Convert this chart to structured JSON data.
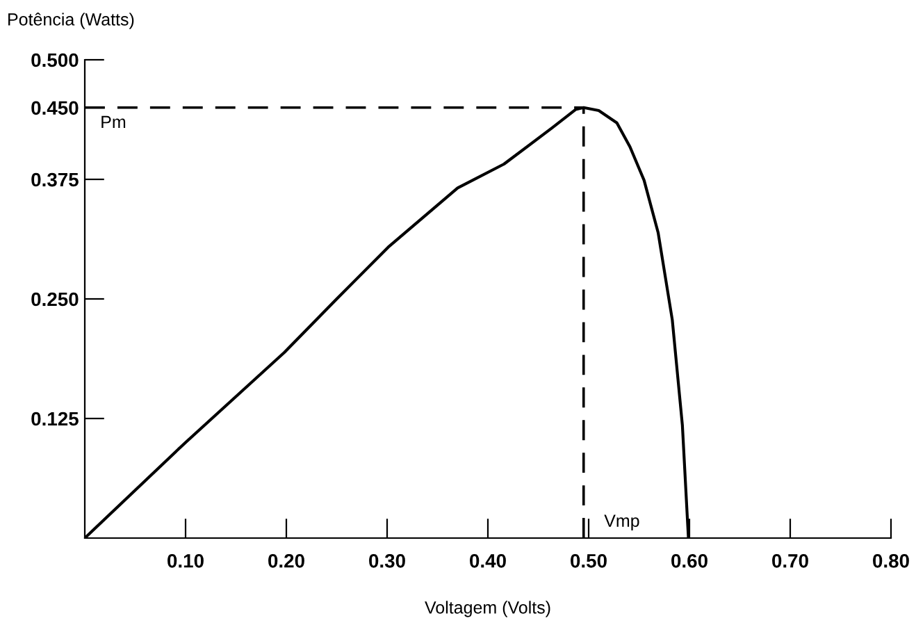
{
  "chart_data": {
    "type": "line",
    "ylabel": "Potência (Watts)",
    "xlabel": "Voltagem (Volts)",
    "series": [
      {
        "color": "#000000",
        "x": [
          0,
          0.1,
          0.198,
          0.25,
          0.301,
          0.37,
          0.416,
          0.464,
          0.487,
          0.495,
          0.51,
          0.528,
          0.541,
          0.555,
          0.569,
          0.583,
          0.593,
          0.599
        ],
        "values": [
          0,
          0.1,
          0.194,
          0.25,
          0.304,
          0.366,
          0.391,
          0.429,
          0.448,
          0.45,
          0.447,
          0.434,
          0.409,
          0.374,
          0.319,
          0.228,
          0.118,
          0
        ]
      }
    ],
    "xlim": [
      0,
      0.8
    ],
    "ylim": [
      0,
      0.5
    ],
    "xticks": [
      {
        "value": 0.1,
        "label": "0.10"
      },
      {
        "value": 0.2,
        "label": "0.20"
      },
      {
        "value": 0.3,
        "label": "0.30"
      },
      {
        "value": 0.4,
        "label": "0.40"
      },
      {
        "value": 0.5,
        "label": "0.50"
      },
      {
        "value": 0.6,
        "label": "0.60"
      },
      {
        "value": 0.7,
        "label": "0.70"
      },
      {
        "value": 0.8,
        "label": "0.80"
      }
    ],
    "yticks": [
      {
        "value": 0.125,
        "label": "0.125"
      },
      {
        "value": 0.25,
        "label": "0.250"
      },
      {
        "value": 0.375,
        "label": "0.375"
      },
      {
        "value": 0.45,
        "label": "0.450"
      },
      {
        "value": 0.5,
        "label": "0.500"
      }
    ],
    "ref_lines": [
      {
        "axis": "y",
        "value": 0.45,
        "line_style": "dashed"
      },
      {
        "axis": "x",
        "value": 0.495,
        "line_style": "dashed"
      }
    ],
    "annotations": [
      {
        "text": "Pm",
        "x": 0,
        "y": 0.45
      },
      {
        "text": "Vmp",
        "x": 0.5,
        "y": 0
      }
    ],
    "grid": false,
    "legend": false,
    "line_style": "solid"
  }
}
